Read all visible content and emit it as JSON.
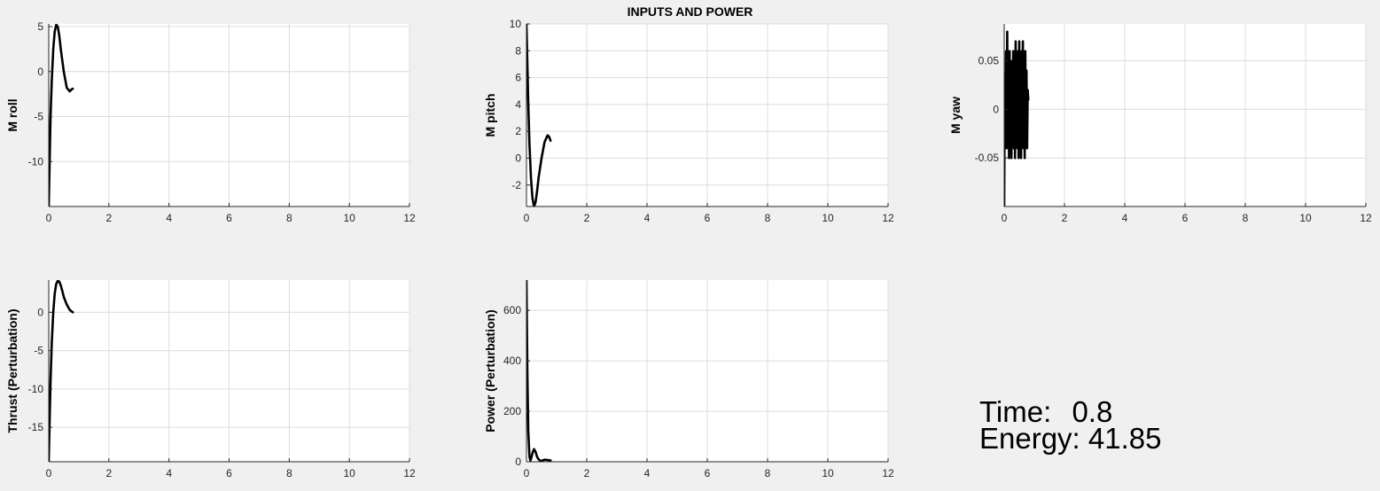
{
  "figure": {
    "title": "INPUTS AND POWER",
    "readout": {
      "time_label": "Time:",
      "time_value": "0.8",
      "energy_label": "Energy:",
      "energy_value": "41.85"
    }
  },
  "chart_data": [
    {
      "type": "line",
      "id": "m-roll",
      "ylabel": "M roll",
      "xlim": [
        0,
        12
      ],
      "ylim": [
        -15,
        5.3
      ],
      "xticks": [
        0,
        2,
        4,
        6,
        8,
        10,
        12
      ],
      "yticks": [
        -10,
        -5,
        0,
        5
      ],
      "grid": true,
      "line_color": "#000000",
      "series": [
        {
          "x": [
            0,
            0.03,
            0.06,
            0.1,
            0.15,
            0.2,
            0.25,
            0.3,
            0.35,
            0.4,
            0.5,
            0.6,
            0.7,
            0.75,
            0.8
          ],
          "y": [
            -15,
            -10,
            -5,
            -1,
            2.5,
            4.5,
            5.2,
            5,
            4,
            2.5,
            0,
            -1.8,
            -2.2,
            -2,
            -1.9
          ]
        }
      ]
    },
    {
      "type": "line",
      "id": "m-pitch",
      "ylabel": "M pitch",
      "xlim": [
        0,
        12
      ],
      "ylim": [
        -3.6,
        10
      ],
      "xticks": [
        0,
        2,
        4,
        6,
        8,
        10,
        12
      ],
      "yticks": [
        -2,
        0,
        2,
        4,
        6,
        8,
        10
      ],
      "grid": true,
      "line_color": "#000000",
      "series": [
        {
          "x": [
            0,
            0.03,
            0.06,
            0.1,
            0.15,
            0.2,
            0.25,
            0.3,
            0.35,
            0.4,
            0.5,
            0.6,
            0.7,
            0.75,
            0.8
          ],
          "y": [
            10,
            7,
            4,
            1,
            -1.5,
            -3,
            -3.6,
            -3.3,
            -2.5,
            -1.5,
            0,
            1.2,
            1.7,
            1.6,
            1.3
          ]
        }
      ]
    },
    {
      "type": "line",
      "id": "m-yaw",
      "ylabel": "M yaw",
      "xlim": [
        0,
        12
      ],
      "ylim": [
        -0.1,
        0.088
      ],
      "xticks": [
        0,
        2,
        4,
        6,
        8,
        10,
        12
      ],
      "yticks": [
        -0.05,
        0,
        0.05
      ],
      "grid": true,
      "line_color": "#000000",
      "series": [
        {
          "x": [
            0,
            0.02,
            0.04,
            0.06,
            0.08,
            0.1,
            0.12,
            0.14,
            0.16,
            0.18,
            0.2,
            0.22,
            0.24,
            0.26,
            0.28,
            0.3,
            0.32,
            0.34,
            0.36,
            0.38,
            0.4,
            0.42,
            0.44,
            0.46,
            0.48,
            0.5,
            0.52,
            0.54,
            0.56,
            0.58,
            0.6,
            0.62,
            0.64,
            0.66,
            0.68,
            0.7,
            0.72,
            0.74,
            0.76,
            0.78,
            0.8
          ],
          "y": [
            -0.1,
            0.03,
            -0.03,
            0.06,
            -0.04,
            0.08,
            -0.03,
            0.05,
            -0.05,
            0.06,
            -0.02,
            0.04,
            -0.05,
            0.05,
            -0.03,
            0.06,
            -0.04,
            0.03,
            -0.05,
            0.07,
            -0.02,
            0.05,
            -0.04,
            0.06,
            -0.05,
            0.07,
            -0.03,
            0.04,
            -0.05,
            0.06,
            -0.02,
            0.07,
            -0.04,
            0.05,
            -0.05,
            0.06,
            -0.03,
            0.04,
            -0.04,
            0.02,
            0.01
          ]
        }
      ]
    },
    {
      "type": "line",
      "id": "thrust",
      "ylabel": "Thrust (Perturbation)",
      "xlim": [
        0,
        12
      ],
      "ylim": [
        -19.5,
        4.2
      ],
      "xticks": [
        0,
        2,
        4,
        6,
        8,
        10,
        12
      ],
      "yticks": [
        -15,
        -10,
        -5,
        0
      ],
      "grid": true,
      "line_color": "#000000",
      "series": [
        {
          "x": [
            0,
            0.03,
            0.06,
            0.1,
            0.15,
            0.2,
            0.25,
            0.3,
            0.35,
            0.4,
            0.45,
            0.5,
            0.6,
            0.7,
            0.8
          ],
          "y": [
            -19.5,
            -14,
            -9,
            -4,
            0,
            2.5,
            3.7,
            4.1,
            4,
            3.5,
            2.8,
            2,
            1,
            0.3,
            0
          ]
        }
      ]
    },
    {
      "type": "line",
      "id": "power",
      "ylabel": "Power (Perturbation)",
      "xlim": [
        0,
        12
      ],
      "ylim": [
        0,
        720
      ],
      "xticks": [
        0,
        2,
        4,
        6,
        8,
        10,
        12
      ],
      "yticks": [
        0,
        200,
        400,
        600
      ],
      "grid": true,
      "line_color": "#000000",
      "series": [
        {
          "x": [
            0,
            0.03,
            0.06,
            0.1,
            0.13,
            0.16,
            0.2,
            0.25,
            0.3,
            0.35,
            0.4,
            0.45,
            0.5,
            0.55,
            0.6,
            0.7,
            0.8
          ],
          "y": [
            720,
            350,
            120,
            20,
            5,
            15,
            35,
            50,
            40,
            20,
            10,
            5,
            3,
            6,
            8,
            7,
            5
          ]
        }
      ]
    }
  ]
}
